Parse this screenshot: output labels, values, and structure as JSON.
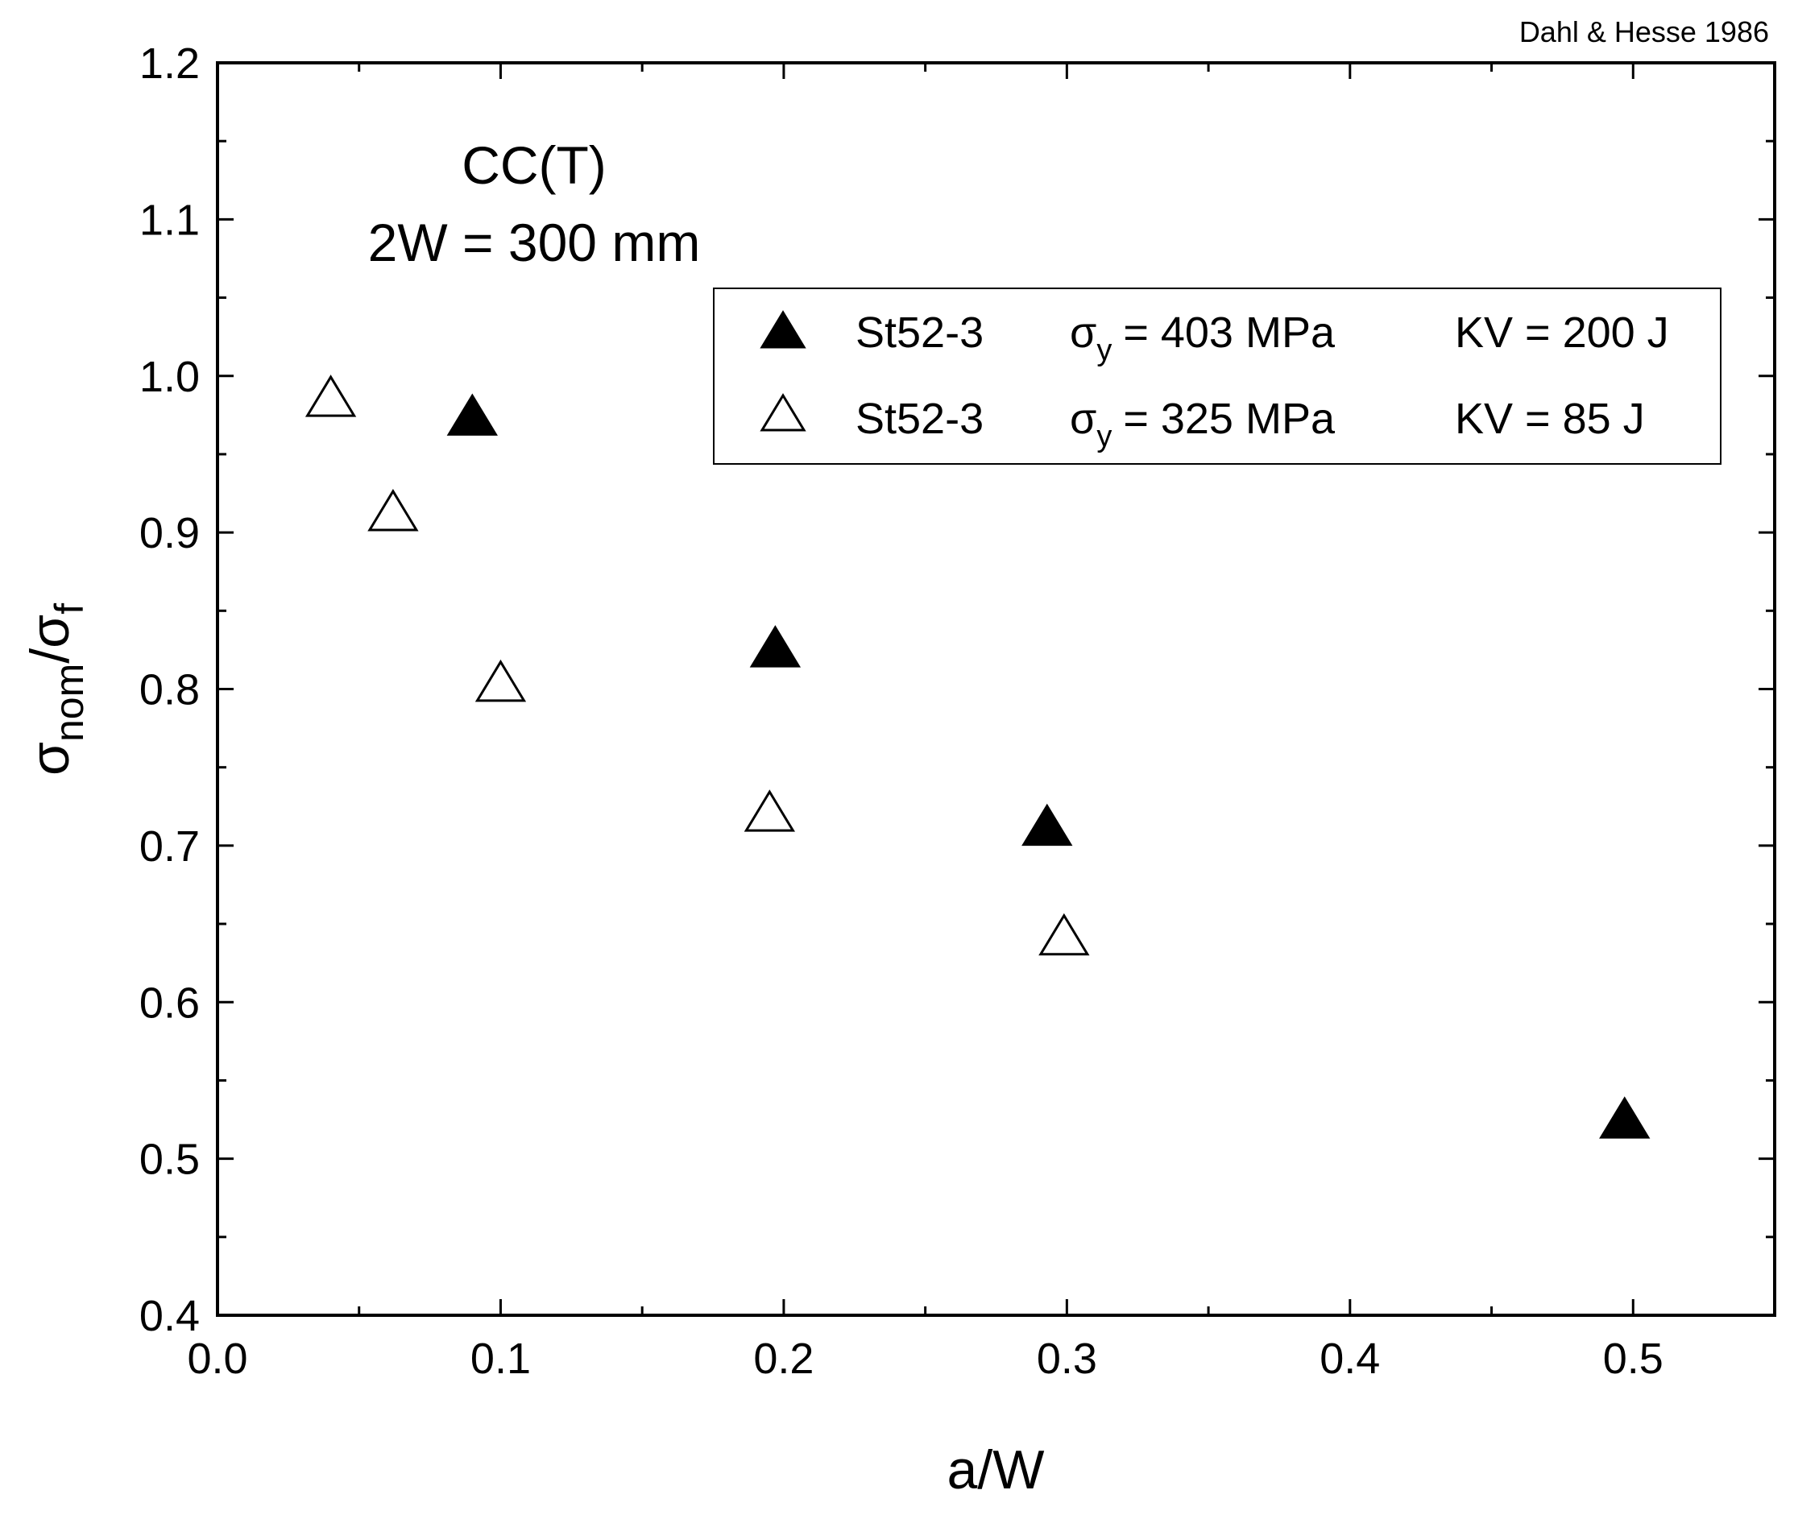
{
  "chart_data": {
    "type": "scatter",
    "title": "",
    "credit": "Dahl & Hesse 1986",
    "annotation": {
      "line1": "CC(T)",
      "line2": "2W = 300 mm"
    },
    "xlabel": "a/W",
    "ylabel": {
      "base": "σ",
      "nom_sub": "nom",
      "slash": "/",
      "f_sub": "f"
    },
    "xlim": [
      0.0,
      0.55
    ],
    "ylim": [
      0.4,
      1.2
    ],
    "xticks": [
      0.0,
      0.1,
      0.2,
      0.3,
      0.4,
      0.5
    ],
    "xtick_labels": [
      "0.0",
      "0.1",
      "0.2",
      "0.3",
      "0.4",
      "0.5"
    ],
    "yticks": [
      0.4,
      0.5,
      0.6,
      0.7,
      0.8,
      0.9,
      1.0,
      1.1,
      1.2
    ],
    "ytick_labels": [
      "0.4",
      "0.5",
      "0.6",
      "0.7",
      "0.8",
      "0.9",
      "1.0",
      "1.1",
      "1.2"
    ],
    "x_minor_step": 0.05,
    "y_minor_step": 0.05,
    "grid": false,
    "legend_position": "upper-right",
    "series": [
      {
        "name": "St52-3 σy = 403 MPa KV = 200 J",
        "material": "St52-3",
        "sigma": "σ",
        "sigma_sub": "y",
        "yield": "= 403 MPa",
        "kv": "KV = 200 J",
        "marker": "filled-triangle",
        "color": "#000000",
        "x": [
          0.09,
          0.197,
          0.293,
          0.497
        ],
        "y": [
          0.973,
          0.825,
          0.711,
          0.524
        ]
      },
      {
        "name": "St52-3 σy = 325 MPa KV = 85 J",
        "material": "St52-3",
        "sigma": "σ",
        "sigma_sub": "y",
        "yield": "= 325 MPa",
        "kv": "KV = 85 J",
        "marker": "open-triangle",
        "color": "#000000",
        "x": [
          0.04,
          0.062,
          0.1,
          0.195,
          0.299
        ],
        "y": [
          0.985,
          0.912,
          0.803,
          0.72,
          0.641
        ]
      }
    ]
  }
}
